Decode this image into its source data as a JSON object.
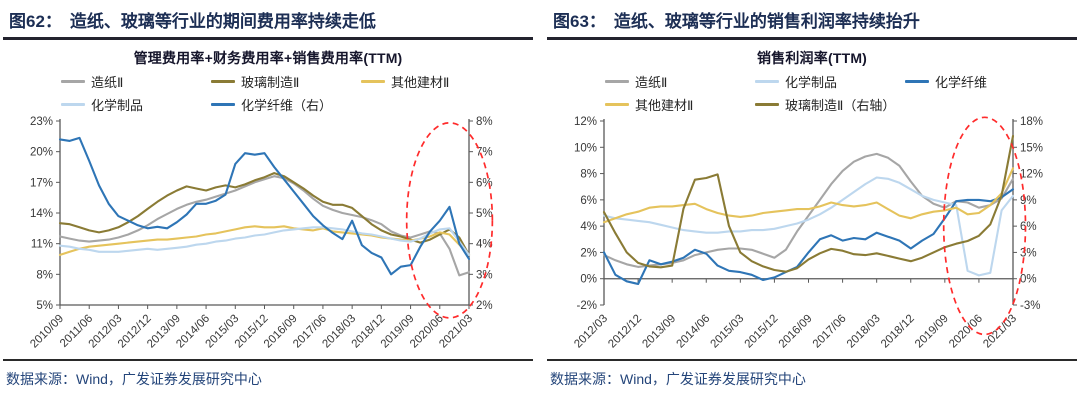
{
  "panels": [
    {
      "fig_label": "图62：",
      "fig_title": "造纸、玻璃等行业的期间费用率持续走低",
      "source_note": "数据来源：Wind，广发证券发展研究中心"
    },
    {
      "fig_label": "图63：",
      "fig_title": "造纸、玻璃等行业的销售利润率持续抬升",
      "source_note": "数据来源：Wind，广发证券发展研究中心"
    }
  ],
  "colors": {
    "header_text": "#1c2e54",
    "rule": "#23232e",
    "source_text": "#24457a",
    "axis": "#595959",
    "tick_label": "#383838",
    "annotation_red": "#ff2b2b"
  },
  "chart_data": [
    {
      "type": "line",
      "title": "管理费用率+财务费用率+销售费用率(TTM)",
      "left_axis": {
        "min": 5,
        "max": 23,
        "step": 3,
        "unit": "%"
      },
      "right_axis": {
        "min": 2,
        "max": 8,
        "step": 1,
        "unit": "%"
      },
      "x_axis_at": 5,
      "x_label_every": 3,
      "x_categories": [
        "2010/09",
        "2010/12",
        "2011/03",
        "2011/06",
        "2011/09",
        "2011/12",
        "2012/03",
        "2012/06",
        "2012/09",
        "2012/12",
        "2013/03",
        "2013/06",
        "2013/09",
        "2013/12",
        "2014/03",
        "2014/06",
        "2014/09",
        "2014/12",
        "2015/03",
        "2015/06",
        "2015/09",
        "2015/12",
        "2016/03",
        "2016/06",
        "2016/09",
        "2016/12",
        "2017/03",
        "2017/06",
        "2017/09",
        "2017/12",
        "2018/03",
        "2018/06",
        "2018/09",
        "2018/12",
        "2019/03",
        "2019/06",
        "2019/09",
        "2019/12",
        "2020/03",
        "2020/06",
        "2020/09",
        "2020/12",
        "2021/03"
      ],
      "series": [
        {
          "key": "zaozhi",
          "name": "造纸Ⅱ",
          "color": "#a6a6a6",
          "axis": "left",
          "values": [
            11.7,
            11.5,
            11.3,
            11.2,
            11.3,
            11.4,
            11.6,
            11.9,
            12.3,
            12.8,
            13.4,
            13.9,
            14.4,
            14.8,
            15.1,
            15.3,
            15.6,
            15.9,
            16.2,
            16.6,
            17.0,
            17.3,
            17.6,
            17.4,
            16.9,
            16.2,
            15.4,
            14.7,
            14.3,
            14.0,
            13.8,
            13.6,
            13.3,
            12.9,
            12.2,
            11.8,
            11.6,
            11.9,
            12.2,
            12.0,
            10.5,
            7.9,
            8.2
          ]
        },
        {
          "key": "boli",
          "name": "玻璃制造Ⅱ",
          "color": "#8a7b35",
          "axis": "left",
          "values": [
            13.0,
            12.9,
            12.6,
            12.3,
            12.1,
            12.3,
            12.6,
            13.1,
            13.7,
            14.4,
            15.1,
            15.7,
            16.2,
            16.6,
            16.4,
            16.2,
            16.5,
            16.7,
            16.5,
            16.8,
            17.2,
            17.5,
            17.9,
            17.6,
            17.0,
            16.4,
            15.7,
            15.1,
            14.8,
            14.8,
            14.5,
            13.7,
            12.9,
            12.3,
            11.9,
            11.7,
            11.4,
            11.1,
            11.4,
            11.9,
            12.4,
            11.6,
            9.9
          ]
        },
        {
          "key": "jiancai",
          "name": "其他建材Ⅱ",
          "color": "#e5c35c",
          "axis": "left",
          "values": [
            9.9,
            10.2,
            10.5,
            10.7,
            10.8,
            10.9,
            11.0,
            11.1,
            11.2,
            11.3,
            11.4,
            11.4,
            11.5,
            11.6,
            11.7,
            11.9,
            12.0,
            12.2,
            12.4,
            12.6,
            12.7,
            12.6,
            12.6,
            12.7,
            12.5,
            12.4,
            12.3,
            12.5,
            12.2,
            12.1,
            12.0,
            11.9,
            11.8,
            11.6,
            11.5,
            11.4,
            11.3,
            11.5,
            11.7,
            12.1,
            11.9,
            10.9,
            9.9
          ]
        },
        {
          "key": "huaxuezhipin",
          "name": "化学制品",
          "color": "#bdd7ee",
          "axis": "left",
          "values": [
            10.8,
            10.7,
            10.5,
            10.4,
            10.2,
            10.2,
            10.2,
            10.3,
            10.4,
            10.5,
            10.4,
            10.5,
            10.6,
            10.7,
            10.9,
            11.0,
            11.2,
            11.3,
            11.5,
            11.6,
            11.8,
            11.9,
            12.1,
            12.3,
            12.4,
            12.5,
            12.6,
            12.6,
            12.5,
            12.4,
            12.2,
            12.0,
            11.9,
            11.7,
            11.5,
            11.3,
            11.2,
            11.5,
            12.0,
            12.4,
            12.5,
            11.2,
            9.9
          ]
        },
        {
          "key": "huaxuexianwei",
          "name": "化学纤维（右）",
          "color": "#2e75b6",
          "axis": "right",
          "values": [
            7.4,
            7.35,
            7.45,
            6.7,
            5.9,
            5.3,
            4.9,
            4.75,
            4.6,
            4.5,
            4.55,
            4.5,
            4.7,
            4.95,
            5.3,
            5.3,
            5.4,
            5.6,
            6.6,
            6.95,
            6.9,
            6.95,
            6.5,
            6.1,
            5.7,
            5.3,
            4.9,
            4.6,
            4.35,
            4.15,
            4.75,
            3.95,
            3.7,
            3.55,
            3.0,
            3.25,
            3.3,
            3.9,
            4.4,
            4.75,
            5.2,
            4.0,
            3.5
          ]
        }
      ],
      "annotation": {
        "shape": "dashed-ellipse",
        "color": "#ff2b2b",
        "cx_index": 40.0,
        "rx_index": 4.4,
        "cy_frac": 0.54,
        "ry_frac": 0.53
      }
    },
    {
      "type": "line",
      "title": "销售利润率(TTM)",
      "left_axis": {
        "min": -2,
        "max": 12,
        "step": 2,
        "unit": "%"
      },
      "right_axis": {
        "min": -3,
        "max": 18,
        "step": 3,
        "unit": "%"
      },
      "x_axis_at": 0,
      "x_label_every": 3,
      "x_categories": [
        "2012/03",
        "2012/06",
        "2012/09",
        "2012/12",
        "2013/03",
        "2013/06",
        "2013/09",
        "2013/12",
        "2014/03",
        "2014/06",
        "2014/09",
        "2014/12",
        "2015/03",
        "2015/06",
        "2015/09",
        "2015/12",
        "2016/03",
        "2016/06",
        "2016/09",
        "2016/12",
        "2017/03",
        "2017/06",
        "2017/09",
        "2017/12",
        "2018/03",
        "2018/06",
        "2018/09",
        "2018/12",
        "2019/03",
        "2019/06",
        "2019/09",
        "2019/12",
        "2020/03",
        "2020/06",
        "2020/09",
        "2020/12",
        "2021/03"
      ],
      "series": [
        {
          "key": "zaozhi",
          "name": "造纸Ⅱ",
          "color": "#a6a6a6",
          "axis": "left",
          "values": [
            1.8,
            1.4,
            1.1,
            0.9,
            1.0,
            1.1,
            1.2,
            1.4,
            1.8,
            2.0,
            2.2,
            2.3,
            2.3,
            2.2,
            1.9,
            1.6,
            2.2,
            3.6,
            4.8,
            6.0,
            7.2,
            8.2,
            8.9,
            9.3,
            9.5,
            9.2,
            8.6,
            7.4,
            6.3,
            5.7,
            5.4,
            5.9,
            5.8,
            5.4,
            5.6,
            6.1,
            7.6
          ]
        },
        {
          "key": "huaxuezhipin",
          "name": "化学制品",
          "color": "#bdd7ee",
          "axis": "left",
          "values": [
            4.8,
            4.6,
            4.5,
            4.4,
            4.3,
            4.1,
            3.9,
            3.7,
            3.6,
            3.5,
            3.5,
            3.6,
            3.6,
            3.7,
            3.7,
            3.8,
            4.0,
            4.2,
            4.5,
            4.9,
            5.4,
            6.0,
            6.6,
            7.2,
            7.7,
            7.6,
            7.3,
            6.8,
            6.3,
            6.0,
            5.8,
            5.6,
            0.6,
            0.25,
            0.45,
            5.2,
            6.3
          ]
        },
        {
          "key": "huaxuexianwei",
          "name": "化学纤维",
          "color": "#2e75b6",
          "axis": "left",
          "values": [
            2.0,
            0.3,
            -0.2,
            -0.4,
            1.4,
            1.1,
            1.3,
            1.6,
            2.2,
            1.9,
            1.0,
            0.6,
            0.5,
            0.3,
            -0.1,
            0.1,
            0.5,
            0.9,
            2.0,
            3.0,
            3.3,
            2.9,
            3.1,
            3.0,
            3.5,
            3.2,
            2.9,
            2.3,
            2.9,
            3.4,
            4.6,
            5.9,
            6.0,
            6.0,
            5.9,
            6.2,
            6.8
          ]
        },
        {
          "key": "jiancai",
          "name": "其他建材Ⅱ",
          "color": "#e5c35c",
          "axis": "left",
          "values": [
            4.3,
            4.6,
            4.9,
            5.1,
            5.4,
            5.5,
            5.5,
            5.6,
            5.7,
            5.3,
            5.0,
            4.8,
            4.7,
            4.8,
            5.0,
            5.1,
            5.2,
            5.3,
            5.3,
            5.5,
            5.8,
            5.6,
            5.5,
            5.6,
            5.8,
            5.3,
            4.8,
            4.6,
            4.9,
            5.1,
            5.2,
            5.4,
            4.9,
            5.0,
            5.6,
            6.5,
            8.4
          ]
        },
        {
          "key": "boli",
          "name": "玻璃制造Ⅱ（右轴）",
          "color": "#8a7b35",
          "axis": "right",
          "values": [
            7.6,
            5.2,
            3.0,
            1.8,
            1.4,
            1.3,
            1.5,
            8.0,
            11.3,
            11.5,
            11.9,
            6.0,
            3.0,
            2.0,
            1.4,
            1.0,
            0.8,
            1.2,
            2.2,
            2.9,
            3.4,
            3.2,
            2.8,
            2.7,
            2.9,
            2.6,
            2.3,
            2.0,
            2.4,
            3.0,
            3.6,
            4.0,
            4.3,
            4.9,
            6.2,
            9.5,
            16.3
          ]
        }
      ],
      "annotation": {
        "shape": "dashed-ellipse",
        "color": "#ff2b2b",
        "cx_index": 33.5,
        "rx_index": 3.6,
        "cy_frac": 0.57,
        "ry_frac": 0.59
      }
    }
  ]
}
